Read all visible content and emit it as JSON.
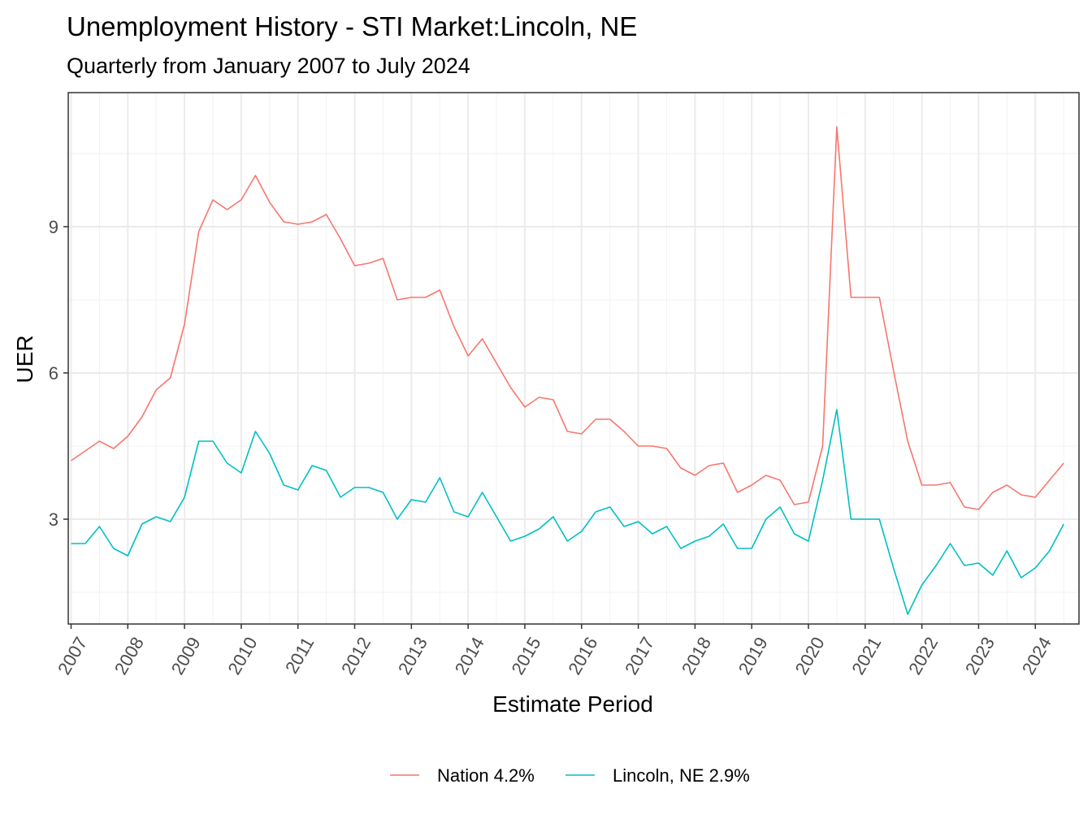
{
  "chart_data": {
    "type": "line",
    "title": "Unemployment History - STI Market:Lincoln, NE",
    "subtitle": "Quarterly from January 2007 to July 2024",
    "xlabel": "Estimate Period",
    "ylabel": "UER",
    "x_ticks": [
      "2007",
      "2008",
      "2009",
      "2010",
      "2011",
      "2012",
      "2013",
      "2014",
      "2015",
      "2016",
      "2017",
      "2018",
      "2019",
      "2020",
      "2021",
      "2022",
      "2023",
      "2024"
    ],
    "y_ticks": [
      3,
      6,
      9
    ],
    "xlim": [
      2006.95,
      2024.77
    ],
    "ylim": [
      0.85,
      11.75
    ],
    "grid": true,
    "legend_position": "bottom",
    "x": [
      2007.0,
      2007.25,
      2007.5,
      2007.75,
      2008.0,
      2008.25,
      2008.5,
      2008.75,
      2009.0,
      2009.25,
      2009.5,
      2009.75,
      2010.0,
      2010.25,
      2010.5,
      2010.75,
      2011.0,
      2011.25,
      2011.5,
      2011.75,
      2012.0,
      2012.25,
      2012.5,
      2012.75,
      2013.0,
      2013.25,
      2013.5,
      2013.75,
      2014.0,
      2014.25,
      2014.5,
      2014.75,
      2015.0,
      2015.25,
      2015.5,
      2015.75,
      2016.0,
      2016.25,
      2016.5,
      2016.75,
      2017.0,
      2017.25,
      2017.5,
      2017.75,
      2018.0,
      2018.25,
      2018.5,
      2018.75,
      2019.0,
      2019.25,
      2019.5,
      2019.75,
      2020.0,
      2020.25,
      2020.5,
      2020.75,
      2021.0,
      2021.25,
      2021.5,
      2021.75,
      2022.0,
      2022.25,
      2022.5,
      2022.75,
      2023.0,
      2023.25,
      2023.5,
      2023.75,
      2024.0,
      2024.25,
      2024.5
    ],
    "series": [
      {
        "name": "Nation 4.2%",
        "color": "#F8766D",
        "values": [
          4.2,
          4.4,
          4.6,
          4.45,
          4.7,
          5.1,
          5.65,
          5.9,
          7.0,
          8.9,
          9.55,
          9.35,
          9.55,
          10.05,
          9.5,
          9.1,
          9.05,
          9.1,
          9.25,
          8.75,
          8.2,
          8.25,
          8.35,
          7.5,
          7.55,
          7.55,
          7.7,
          6.95,
          6.35,
          6.7,
          6.2,
          5.7,
          5.3,
          5.5,
          5.45,
          4.8,
          4.75,
          5.05,
          5.05,
          4.8,
          4.5,
          4.5,
          4.45,
          4.05,
          3.9,
          4.1,
          4.15,
          3.55,
          3.7,
          3.9,
          3.8,
          3.3,
          3.35,
          4.5,
          11.05,
          7.55,
          7.55,
          7.55,
          6.05,
          4.6,
          3.7,
          3.7,
          3.75,
          3.25,
          3.2,
          3.55,
          3.7,
          3.5,
          3.45,
          3.8,
          4.15
        ]
      },
      {
        "name": "Lincoln, NE 2.9%",
        "color": "#00BFC4",
        "values": [
          2.5,
          2.5,
          2.85,
          2.4,
          2.25,
          2.9,
          3.05,
          2.95,
          3.45,
          4.6,
          4.6,
          4.15,
          3.95,
          4.8,
          4.35,
          3.7,
          3.6,
          4.1,
          4.0,
          3.45,
          3.65,
          3.65,
          3.55,
          3.0,
          3.4,
          3.35,
          3.85,
          3.15,
          3.05,
          3.55,
          3.05,
          2.55,
          2.65,
          2.8,
          3.05,
          2.55,
          2.75,
          3.15,
          3.25,
          2.85,
          2.95,
          2.7,
          2.85,
          2.4,
          2.55,
          2.65,
          2.9,
          2.4,
          2.4,
          3.0,
          3.25,
          2.7,
          2.55,
          3.8,
          5.25,
          3.0,
          3.0,
          3.0,
          2.0,
          1.05,
          1.65,
          2.05,
          2.5,
          2.05,
          2.1,
          1.85,
          2.35,
          1.8,
          2.0,
          2.35,
          2.9
        ]
      }
    ]
  }
}
